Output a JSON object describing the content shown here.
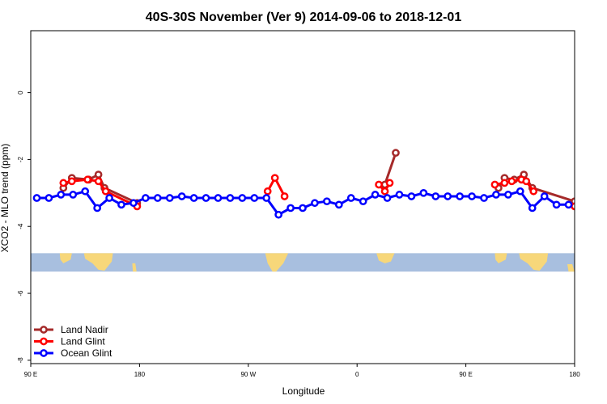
{
  "chart_data": {
    "type": "line",
    "title": "40S-30S November (Ver 9)   2014-09-06 to 2018-12-01",
    "xlabel": "Longitude",
    "ylabel": "XCO2 - MLO trend (ppm)",
    "x_range_deg": [
      90,
      540
    ],
    "y_range": [
      -8,
      2
    ],
    "x_ticks": [
      {
        "value": 90,
        "label": "90 E"
      },
      {
        "value": 180,
        "label": "180"
      },
      {
        "value": 270,
        "label": "90 W"
      },
      {
        "value": 360,
        "label": "0"
      },
      {
        "value": 450,
        "label": "90 E"
      },
      {
        "value": 540,
        "label": "180"
      }
    ],
    "y_ticks": [
      {
        "value": 0,
        "label": "0"
      },
      {
        "value": -2,
        "label": "-2"
      },
      {
        "value": -4,
        "label": "-4"
      },
      {
        "value": -6,
        "label": "-6"
      },
      {
        "value": -8,
        "label": "-8"
      }
    ],
    "map_band": {
      "y_top": -4.8,
      "y_bottom": -5.35,
      "ocean_color": "#a8bfdf",
      "land_color": "#f7d77a"
    },
    "series": [
      {
        "name": "Land Nadir",
        "color": "#a52a2a",
        "segments": [
          [
            [
              117,
              -2.85
            ],
            [
              124,
              -2.55
            ],
            [
              138,
              -2.6
            ],
            [
              146,
              -2.45
            ],
            [
              151,
              -2.85
            ],
            [
              178,
              -3.3
            ]
          ],
          [
            [
              383,
              -2.75
            ],
            [
              392,
              -1.8
            ]
          ],
          [
            [
              477,
              -2.85
            ],
            [
              482,
              -2.55
            ],
            [
              490,
              -2.6
            ],
            [
              498,
              -2.45
            ],
            [
              505,
              -2.85
            ],
            [
              540,
              -3.25
            ]
          ]
        ]
      },
      {
        "name": "Land Glint",
        "color": "#ff0000",
        "segments": [
          [
            [
              117,
              -2.7
            ],
            [
              124,
              -2.65
            ],
            [
              137,
              -2.6
            ],
            [
              146,
              -2.65
            ],
            [
              152,
              -2.95
            ],
            [
              178,
              -3.4
            ]
          ],
          [
            [
              286,
              -2.95
            ],
            [
              292,
              -2.55
            ],
            [
              300,
              -3.1
            ]
          ],
          [
            [
              378,
              -2.75
            ],
            [
              383,
              -2.95
            ],
            [
              387,
              -2.7
            ]
          ],
          [
            [
              474,
              -2.75
            ],
            [
              482,
              -2.7
            ],
            [
              488,
              -2.65
            ],
            [
              496,
              -2.6
            ],
            [
              500,
              -2.65
            ],
            [
              506,
              -2.95
            ]
          ],
          [
            [
              540,
              -3.4
            ]
          ]
        ]
      },
      {
        "name": "Ocean Glint",
        "color": "#0000ff",
        "segments": [
          [
            [
              95,
              -3.15
            ],
            [
              105,
              -3.15
            ],
            [
              115,
              -3.05
            ],
            [
              125,
              -3.05
            ],
            [
              135,
              -2.95
            ],
            [
              145,
              -3.45
            ],
            [
              155,
              -3.15
            ],
            [
              165,
              -3.35
            ],
            [
              175,
              -3.3
            ],
            [
              185,
              -3.15
            ],
            [
              195,
              -3.15
            ],
            [
              205,
              -3.15
            ],
            [
              215,
              -3.1
            ],
            [
              225,
              -3.15
            ],
            [
              235,
              -3.15
            ],
            [
              245,
              -3.15
            ],
            [
              255,
              -3.15
            ],
            [
              265,
              -3.15
            ],
            [
              275,
              -3.15
            ],
            [
              285,
              -3.15
            ],
            [
              295,
              -3.65
            ],
            [
              305,
              -3.45
            ],
            [
              315,
              -3.45
            ],
            [
              325,
              -3.3
            ],
            [
              335,
              -3.25
            ],
            [
              345,
              -3.35
            ],
            [
              355,
              -3.15
            ],
            [
              365,
              -3.25
            ],
            [
              375,
              -3.05
            ],
            [
              385,
              -3.15
            ],
            [
              395,
              -3.05
            ],
            [
              405,
              -3.1
            ],
            [
              415,
              -3.0
            ],
            [
              425,
              -3.1
            ],
            [
              435,
              -3.1
            ],
            [
              445,
              -3.1
            ],
            [
              455,
              -3.1
            ],
            [
              465,
              -3.15
            ],
            [
              475,
              -3.05
            ],
            [
              485,
              -3.05
            ],
            [
              495,
              -2.95
            ],
            [
              505,
              -3.45
            ],
            [
              515,
              -3.1
            ],
            [
              525,
              -3.35
            ],
            [
              535,
              -3.35
            ]
          ]
        ]
      }
    ],
    "legend": {
      "position": "bottom-left"
    }
  }
}
